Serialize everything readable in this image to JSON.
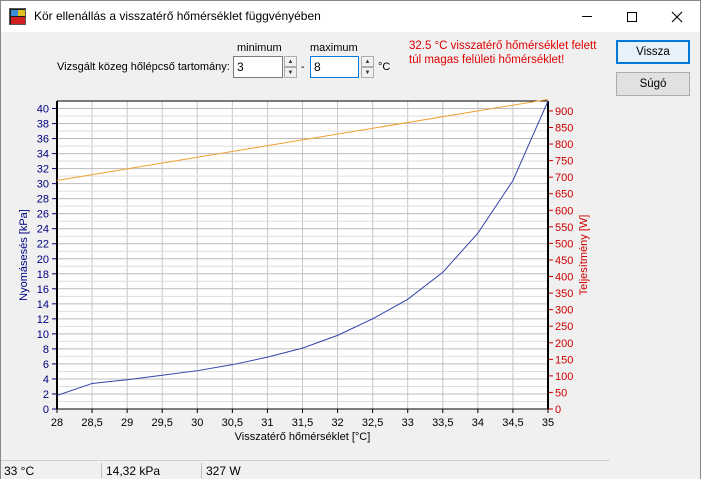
{
  "window": {
    "title": "Kör ellenállás a visszatérő hőmérséklet függvényében"
  },
  "range": {
    "label": "Vizsgált közeg hőlépcső tartomány:",
    "min_label": "minimum",
    "max_label": "maximum",
    "min_value": "3",
    "max_value": "8",
    "dash": "-",
    "unit": "°C"
  },
  "warning": "32.5 °C visszatérő hőmérséklet felett túl magas felületi hőmérséklet!",
  "buttons": {
    "back": "Vissza",
    "help": "Súgó"
  },
  "status": {
    "temp": "33 °C",
    "pressure": "14,32 kPa",
    "power": "327 W"
  },
  "colors": {
    "pressure_series": "#3344aa",
    "power_series": "#f0a030",
    "left_axis": "#000080",
    "right_axis": "#cc0000"
  },
  "chart_data": {
    "type": "line",
    "xlabel": "Visszatérő hőmérséklet [°C]",
    "ylabel": "Nyomásesés [kPa]",
    "y2label": "Teljesítmény [W]",
    "xlim": [
      28,
      35
    ],
    "ylim": [
      0,
      41
    ],
    "y2lim": [
      0,
      930
    ],
    "x_ticks": [
      "28",
      "28,5",
      "29",
      "29,5",
      "30",
      "30,5",
      "31",
      "31,5",
      "32",
      "32,5",
      "33",
      "33,5",
      "34",
      "34,5",
      "35"
    ],
    "y_ticks": [
      0,
      2,
      4,
      6,
      8,
      10,
      12,
      14,
      16,
      18,
      20,
      22,
      24,
      26,
      28,
      30,
      32,
      34,
      36,
      38,
      40
    ],
    "y2_ticks": [
      0,
      50,
      100,
      150,
      200,
      250,
      300,
      350,
      400,
      450,
      500,
      550,
      600,
      650,
      700,
      750,
      800,
      850,
      900
    ],
    "grid": true,
    "series": [
      {
        "axis": "left",
        "x": [
          28,
          28.5,
          29,
          29.5,
          30,
          30.5,
          31,
          31.5,
          32,
          32.5,
          33,
          33.5,
          34,
          34.5,
          35
        ],
        "y": [
          1.8,
          3.4,
          3.9,
          4.5,
          5.1,
          5.9,
          6.9,
          8.1,
          9.8,
          12.0,
          14.6,
          18.2,
          23.4,
          30.4,
          41.0
        ]
      },
      {
        "axis": "right",
        "x": [
          28,
          35
        ],
        "y": [
          690,
          935
        ]
      }
    ]
  }
}
